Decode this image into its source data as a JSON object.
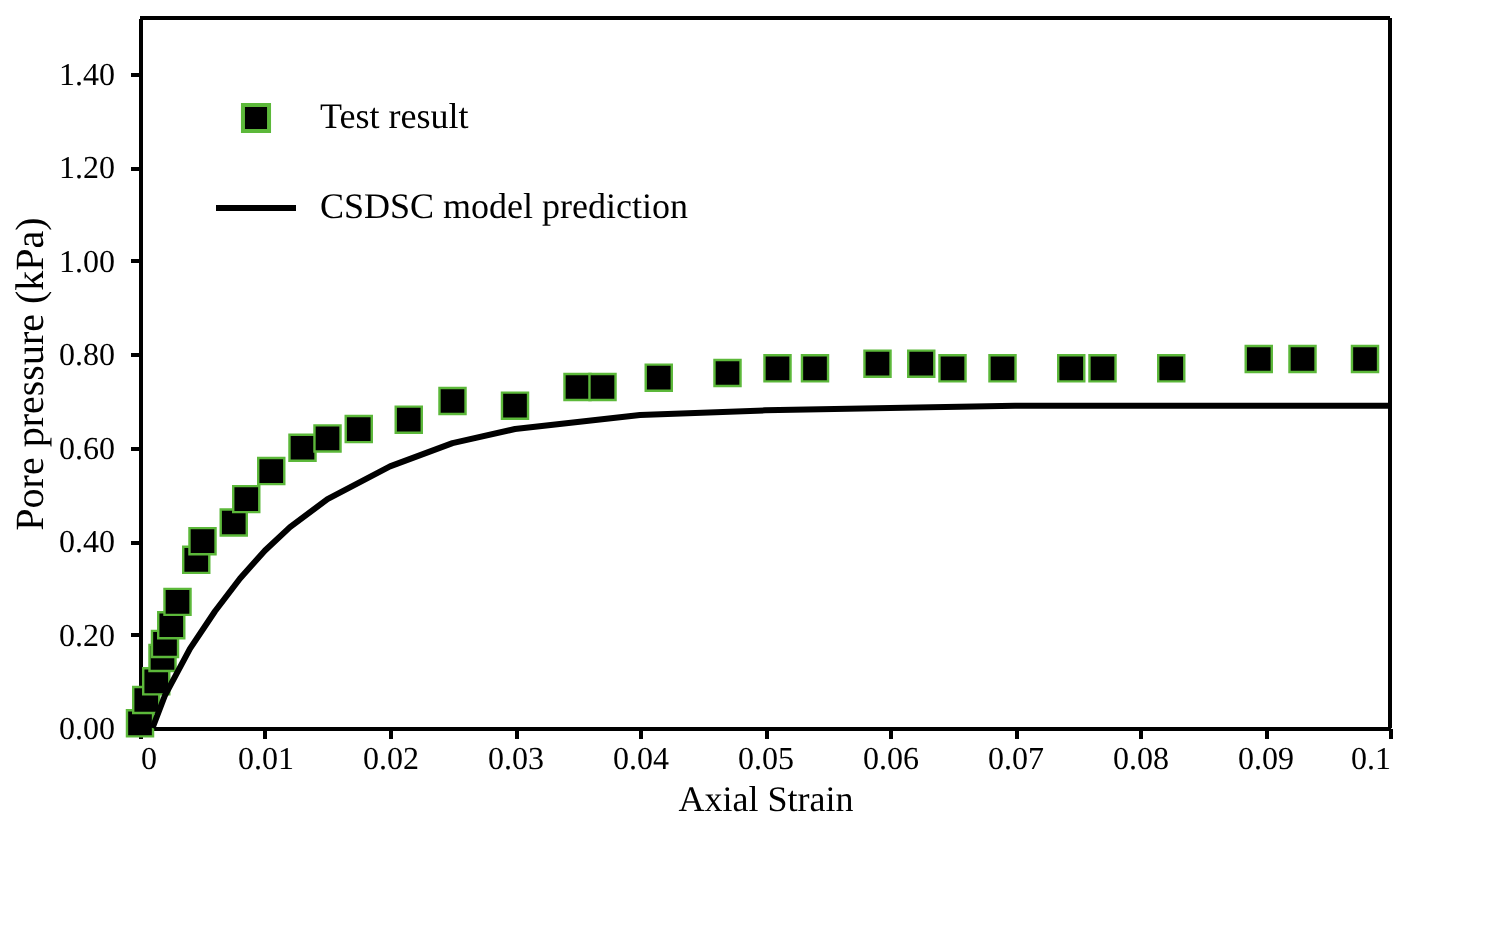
{
  "chart_data": {
    "type": "scatter",
    "xlabel": "Axial Strain",
    "ylabel": "Pore pressure (kPa)",
    "xlim": [
      0,
      0.1
    ],
    "ylim": [
      0,
      1.52
    ],
    "xticks": [
      {
        "value": 0,
        "label": "0"
      },
      {
        "value": 0.01,
        "label": "0.01"
      },
      {
        "value": 0.02,
        "label": "0.02"
      },
      {
        "value": 0.03,
        "label": "0.03"
      },
      {
        "value": 0.04,
        "label": "0.04"
      },
      {
        "value": 0.05,
        "label": "0.05"
      },
      {
        "value": 0.06,
        "label": "0.06"
      },
      {
        "value": 0.07,
        "label": "0.07"
      },
      {
        "value": 0.08,
        "label": "0.08"
      },
      {
        "value": 0.09,
        "label": "0.09"
      },
      {
        "value": 0.1,
        "label": "0.1"
      }
    ],
    "yticks": [
      {
        "value": 0,
        "label": "0.00"
      },
      {
        "value": 0.2,
        "label": "0.20"
      },
      {
        "value": 0.4,
        "label": "0.40"
      },
      {
        "value": 0.6,
        "label": "0.60"
      },
      {
        "value": 0.8,
        "label": "0.80"
      },
      {
        "value": 1.0,
        "label": "1.00"
      },
      {
        "value": 1.2,
        "label": "1.20"
      },
      {
        "value": 1.4,
        "label": "1.40"
      }
    ],
    "grid": false,
    "legend": "top left",
    "series": [
      {
        "name": "Test result",
        "marker": "square",
        "color": "#000000",
        "x": [
          0,
          0.0005,
          0.0013,
          0.0018,
          0.002,
          0.0025,
          0.003,
          0.0045,
          0.005,
          0.0075,
          0.0085,
          0.0105,
          0.013,
          0.015,
          0.0175,
          0.0215,
          0.025,
          0.03,
          0.035,
          0.037,
          0.0415,
          0.047,
          0.051,
          0.054,
          0.059,
          0.0625,
          0.065,
          0.069,
          0.0745,
          0.077,
          0.0825,
          0.0895,
          0.093,
          0.098
        ],
        "values": [
          0.01,
          0.06,
          0.1,
          0.15,
          0.18,
          0.22,
          0.27,
          0.36,
          0.4,
          0.44,
          0.49,
          0.55,
          0.6,
          0.62,
          0.64,
          0.66,
          0.7,
          0.69,
          0.73,
          0.73,
          0.75,
          0.76,
          0.77,
          0.77,
          0.78,
          0.78,
          0.77,
          0.77,
          0.77,
          0.77,
          0.77,
          0.79,
          0.79,
          0.79
        ]
      },
      {
        "name": "CSDSC model prediction",
        "type": "line",
        "line_style": "solid",
        "color": "#000000",
        "x": [
          0.001,
          0.002,
          0.004,
          0.006,
          0.008,
          0.01,
          0.012,
          0.015,
          0.02,
          0.025,
          0.03,
          0.04,
          0.05,
          0.06,
          0.07,
          0.08,
          0.09,
          0.1
        ],
        "values": [
          0.0,
          0.07,
          0.17,
          0.25,
          0.32,
          0.38,
          0.43,
          0.49,
          0.56,
          0.61,
          0.64,
          0.67,
          0.68,
          0.685,
          0.69,
          0.69,
          0.69,
          0.69
        ]
      }
    ]
  }
}
